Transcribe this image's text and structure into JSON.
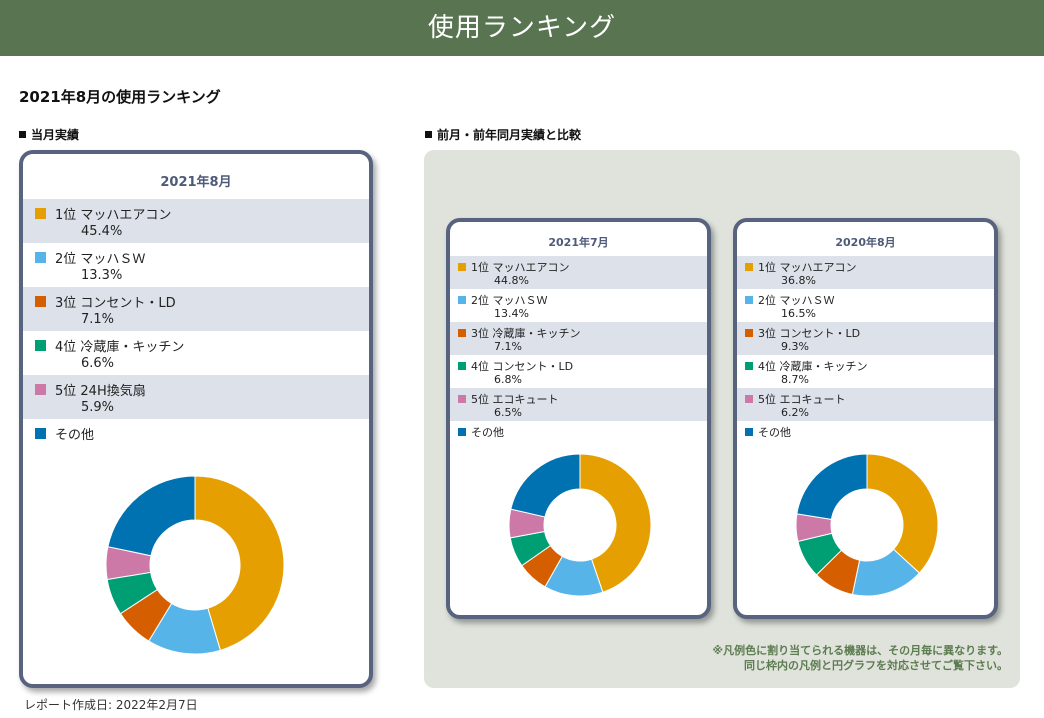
{
  "header": {
    "title": "使用ランキング"
  },
  "page": {
    "title": "2021年8月の使用ランキング"
  },
  "sections": {
    "current": "当月実績",
    "compare": "前月・前年同月実績と比較"
  },
  "colors": [
    "#e69f00",
    "#56b4e9",
    "#d55e00",
    "#009e73",
    "#cc79a7",
    "#0072b2"
  ],
  "cards": [
    {
      "title": "2021年8月",
      "items": [
        {
          "label": "1位 マッハエアコン",
          "pct": "45.4%"
        },
        {
          "label": "2位 マッハＳＷ",
          "pct": "13.3%"
        },
        {
          "label": "3位 コンセント・LD",
          "pct": "7.1%"
        },
        {
          "label": "4位 冷蔵庫・キッチン",
          "pct": "6.6%"
        },
        {
          "label": "5位 24H換気扇",
          "pct": "5.9%"
        },
        {
          "label": "その他",
          "pct": ""
        }
      ]
    },
    {
      "title": "2021年7月",
      "items": [
        {
          "label": "1位 マッハエアコン",
          "pct": "44.8%"
        },
        {
          "label": "2位 マッハＳＷ",
          "pct": "13.4%"
        },
        {
          "label": "3位 冷蔵庫・キッチン",
          "pct": "7.1%"
        },
        {
          "label": "4位 コンセント・LD",
          "pct": "6.8%"
        },
        {
          "label": "5位 エコキュート",
          "pct": "6.5%"
        },
        {
          "label": "その他",
          "pct": ""
        }
      ]
    },
    {
      "title": "2020年8月",
      "items": [
        {
          "label": "1位 マッハエアコン",
          "pct": "36.8%"
        },
        {
          "label": "2位 マッハＳＷ",
          "pct": "16.5%"
        },
        {
          "label": "3位 コンセント・LD",
          "pct": "9.3%"
        },
        {
          "label": "4位 冷蔵庫・キッチン",
          "pct": "8.7%"
        },
        {
          "label": "5位 エコキュート",
          "pct": "6.2%"
        },
        {
          "label": "その他",
          "pct": ""
        }
      ]
    }
  ],
  "chart_data": [
    {
      "type": "pie",
      "title": "2021年8月",
      "categories": [
        "マッハエアコン",
        "マッハＳＷ",
        "コンセント・LD",
        "冷蔵庫・キッチン",
        "24H換気扇",
        "その他"
      ],
      "values": [
        45.4,
        13.3,
        7.1,
        6.6,
        5.9,
        21.7
      ]
    },
    {
      "type": "pie",
      "title": "2021年7月",
      "categories": [
        "マッハエアコン",
        "マッハＳＷ",
        "冷蔵庫・キッチン",
        "コンセント・LD",
        "エコキュート",
        "その他"
      ],
      "values": [
        44.8,
        13.4,
        7.1,
        6.8,
        6.5,
        21.4
      ]
    },
    {
      "type": "pie",
      "title": "2020年8月",
      "categories": [
        "マッハエアコン",
        "マッハＳＷ",
        "コンセント・LD",
        "冷蔵庫・キッチン",
        "エコキュート",
        "その他"
      ],
      "values": [
        36.8,
        16.5,
        9.3,
        8.7,
        6.2,
        22.5
      ]
    }
  ],
  "note": {
    "line1": "※凡例色に割り当てられる機器は、その月毎に異なります。",
    "line2": "同じ枠内の凡例と円グラフを対応させてご覧下さい。"
  },
  "footer": {
    "report_date": "レポート作成日: 2022年2月7日"
  }
}
